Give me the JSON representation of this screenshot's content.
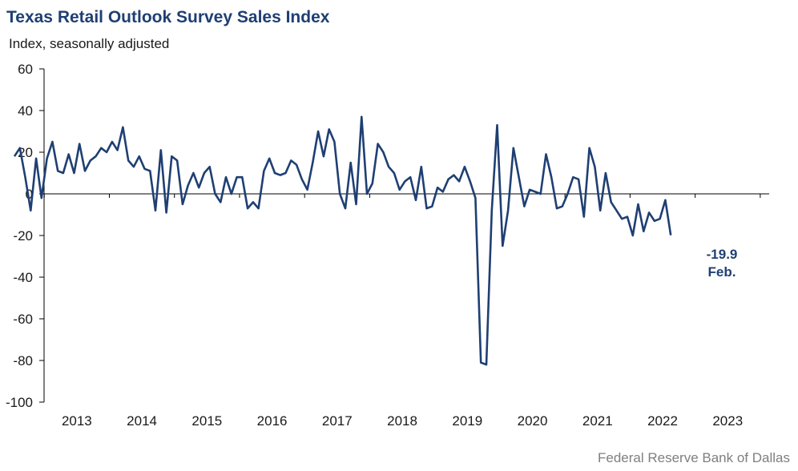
{
  "chart_data": {
    "type": "line",
    "title": "Texas Retail Outlook Survey Sales Index",
    "ylabel": "Index, seasonally adjusted",
    "ylim": [
      -100,
      60
    ],
    "yticks": [
      60,
      40,
      20,
      0,
      -20,
      -40,
      -60,
      -80,
      -100
    ],
    "x_start": "2012-07",
    "x_tick_labels": [
      "2013",
      "2014",
      "2015",
      "2016",
      "2017",
      "2018",
      "2019",
      "2020",
      "2021",
      "2022",
      "2023"
    ],
    "series": [
      {
        "color": "#1f3f73",
        "values": [
          18,
          22,
          8,
          -8,
          17,
          -2,
          17,
          25,
          11,
          10,
          19,
          10,
          24,
          11,
          16,
          18,
          22,
          20,
          25,
          21,
          32,
          16,
          13,
          18,
          12,
          11,
          -8,
          21,
          -9,
          18,
          16,
          -5,
          4,
          10,
          3,
          10,
          13,
          0,
          -4,
          8,
          0,
          8,
          8,
          -7,
          -4,
          -7,
          11,
          17,
          10,
          9,
          10,
          16,
          14,
          7,
          2,
          15,
          30,
          18,
          31,
          25,
          0,
          -7,
          15,
          -5,
          37,
          0,
          5,
          24,
          20,
          13,
          10,
          2,
          6,
          8,
          -3,
          13,
          -7,
          -6,
          3,
          1,
          7,
          9,
          6,
          13,
          6,
          -2,
          -81,
          -82,
          -8,
          33,
          -25,
          -8,
          22,
          8,
          -6,
          2,
          1,
          0,
          19,
          8,
          -7,
          -6,
          0,
          8,
          7,
          -11,
          22,
          13,
          -8,
          10,
          -4,
          -8,
          -12,
          -11,
          -20,
          -5,
          -18,
          -9,
          -13,
          -12,
          -3,
          -19.9
        ]
      }
    ],
    "annotation": {
      "value": "-19.9",
      "label": "Feb."
    },
    "source": "Federal Reserve Bank of Dallas",
    "grid": false,
    "line_color": "#1f3f73"
  }
}
